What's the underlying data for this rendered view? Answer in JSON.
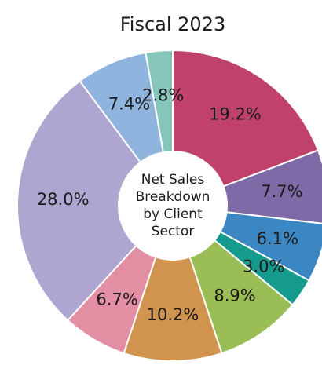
{
  "chart_data": {
    "type": "donut",
    "title": "Fiscal 2023",
    "center_label": [
      "Net Sales",
      "Breakdown",
      "by Client",
      "Sector"
    ],
    "values": [
      19.2,
      7.7,
      6.1,
      3.0,
      8.9,
      10.2,
      6.7,
      28.0,
      7.4,
      2.8
    ],
    "value_labels": [
      "19.2%",
      "7.7%",
      "6.1%",
      "3.0%",
      "8.9%",
      "10.2%",
      "6.7%",
      "28.0%",
      "7.4%",
      "2.8%"
    ],
    "colors": [
      "#c0426a",
      "#7d6aa6",
      "#3a87c4",
      "#159a8e",
      "#9bbd55",
      "#d0944e",
      "#e28ea3",
      "#aea5d0",
      "#8fb5de",
      "#86c6ba"
    ]
  }
}
